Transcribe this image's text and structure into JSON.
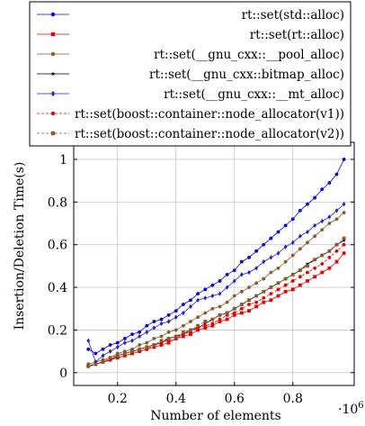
{
  "chart_data": {
    "type": "line",
    "xlabel": "Number of elements",
    "ylabel": "Insertion/Deletion Time(s)",
    "x_scale_label": "·10",
    "x_scale_exponent": "6",
    "xlim": [
      0.05,
      1.01
    ],
    "ylim": [
      -0.06,
      1.08
    ],
    "xticks": [
      0.2,
      0.4,
      0.6,
      0.8
    ],
    "xtick_labels": [
      "0.2",
      "0.4",
      "0.6",
      "0.8"
    ],
    "yticks": [
      0,
      0.2,
      0.4,
      0.6,
      0.8,
      1
    ],
    "ytick_labels": [
      "0",
      "0.2",
      "0.4",
      "0.6",
      "0.8",
      "1"
    ],
    "grid": true,
    "legend_position": "top",
    "x": [
      0.1,
      0.125,
      0.15,
      0.175,
      0.2,
      0.225,
      0.25,
      0.275,
      0.3,
      0.325,
      0.35,
      0.375,
      0.4,
      0.425,
      0.45,
      0.475,
      0.5,
      0.525,
      0.55,
      0.575,
      0.6,
      0.625,
      0.65,
      0.675,
      0.7,
      0.725,
      0.75,
      0.775,
      0.8,
      0.825,
      0.85,
      0.875,
      0.9,
      0.925,
      0.95,
      0.975
    ],
    "series": [
      {
        "name": "rt::set(std::alloc)",
        "color": "#0000ee",
        "marker": "circle",
        "dashed": false,
        "values": [
          0.11,
          0.09,
          0.11,
          0.13,
          0.14,
          0.16,
          0.18,
          0.19,
          0.22,
          0.24,
          0.25,
          0.27,
          0.29,
          0.32,
          0.34,
          0.37,
          0.39,
          0.41,
          0.43,
          0.46,
          0.48,
          0.52,
          0.54,
          0.57,
          0.6,
          0.63,
          0.66,
          0.69,
          0.72,
          0.76,
          0.79,
          0.82,
          0.86,
          0.89,
          0.93,
          1.0
        ]
      },
      {
        "name": "rt::set(rt::alloc)",
        "color": "#ee0000",
        "marker": "square",
        "dashed": false,
        "values": [
          0.03,
          0.04,
          0.05,
          0.06,
          0.07,
          0.08,
          0.09,
          0.1,
          0.11,
          0.12,
          0.13,
          0.14,
          0.16,
          0.17,
          0.18,
          0.2,
          0.21,
          0.22,
          0.24,
          0.25,
          0.27,
          0.28,
          0.29,
          0.31,
          0.33,
          0.34,
          0.36,
          0.38,
          0.39,
          0.41,
          0.43,
          0.45,
          0.47,
          0.49,
          0.52,
          0.56
        ]
      },
      {
        "name": "rt::set(__gnu_cxx::__pool_alloc)",
        "color": "#8b5a2b",
        "marker": "circle",
        "dashed": false,
        "values": [
          0.04,
          0.05,
          0.06,
          0.07,
          0.09,
          0.1,
          0.11,
          0.13,
          0.14,
          0.16,
          0.17,
          0.19,
          0.2,
          0.22,
          0.24,
          0.26,
          0.28,
          0.3,
          0.31,
          0.33,
          0.36,
          0.38,
          0.4,
          0.42,
          0.44,
          0.47,
          0.49,
          0.52,
          0.55,
          0.58,
          0.61,
          0.64,
          0.67,
          0.7,
          0.72,
          0.75
        ]
      },
      {
        "name": "rt::set(__gnu_cxx::bitmap_alloc)",
        "color": "#000000",
        "marker": "star",
        "dashed": false,
        "values": [
          0.03,
          0.04,
          0.05,
          0.06,
          0.08,
          0.09,
          0.1,
          0.11,
          0.12,
          0.13,
          0.14,
          0.16,
          0.17,
          0.18,
          0.2,
          0.21,
          0.23,
          0.25,
          0.27,
          0.28,
          0.3,
          0.32,
          0.34,
          0.36,
          0.38,
          0.4,
          0.42,
          0.44,
          0.46,
          0.48,
          0.51,
          0.53,
          0.55,
          0.57,
          0.6,
          0.62
        ]
      },
      {
        "name": "rt::set(__gnu_cxx::__mt_alloc)",
        "color": "#2222cc",
        "marker": "diamond",
        "dashed": false,
        "values": [
          0.15,
          0.05,
          0.08,
          0.1,
          0.12,
          0.14,
          0.15,
          0.17,
          0.19,
          0.21,
          0.23,
          0.24,
          0.26,
          0.28,
          0.31,
          0.34,
          0.35,
          0.36,
          0.37,
          0.4,
          0.43,
          0.46,
          0.47,
          0.49,
          0.52,
          0.54,
          0.56,
          0.59,
          0.61,
          0.64,
          0.66,
          0.69,
          0.71,
          0.73,
          0.76,
          0.79
        ]
      },
      {
        "name": "rt::set(boost::container::node_allocator(v1))",
        "color": "#ee0000",
        "marker": "circle",
        "dashed": true,
        "values": [
          0.03,
          0.04,
          0.05,
          0.06,
          0.07,
          0.08,
          0.09,
          0.1,
          0.11,
          0.13,
          0.14,
          0.15,
          0.16,
          0.18,
          0.19,
          0.21,
          0.22,
          0.23,
          0.25,
          0.27,
          0.28,
          0.3,
          0.32,
          0.33,
          0.35,
          0.37,
          0.39,
          0.41,
          0.43,
          0.45,
          0.47,
          0.49,
          0.51,
          0.54,
          0.57,
          0.6
        ]
      },
      {
        "name": "rt::set(boost::container::node_allocator(v2))",
        "color": "#8b5a2b",
        "marker": "square",
        "dashed": true,
        "values": [
          0.03,
          0.04,
          0.05,
          0.07,
          0.08,
          0.09,
          0.1,
          0.11,
          0.12,
          0.13,
          0.15,
          0.16,
          0.17,
          0.19,
          0.2,
          0.22,
          0.24,
          0.25,
          0.27,
          0.28,
          0.3,
          0.32,
          0.34,
          0.36,
          0.38,
          0.4,
          0.42,
          0.44,
          0.46,
          0.48,
          0.5,
          0.53,
          0.55,
          0.57,
          0.6,
          0.63
        ]
      }
    ]
  }
}
